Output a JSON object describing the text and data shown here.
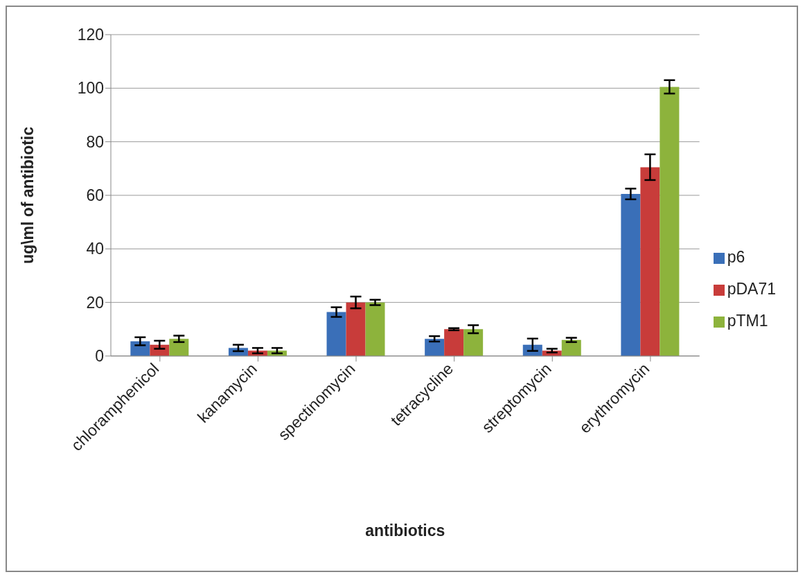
{
  "chart_data": {
    "type": "bar",
    "xlabel": "antibiotics",
    "ylabel": "ug\\ml of antibiotic",
    "categories": [
      "chloramphenicol",
      "kanamycin",
      "spectinomycin",
      "tetracycline",
      "streptomycin",
      "erythromycin"
    ],
    "series": [
      {
        "name": "p6",
        "color": "#3a6fb8",
        "values": [
          5.5,
          3,
          16.4,
          6.4,
          4.2,
          60.5
        ],
        "errors": [
          1.5,
          1.2,
          1.8,
          1,
          2.3,
          2
        ]
      },
      {
        "name": "pDA71",
        "color": "#c83c3a",
        "values": [
          4.2,
          2,
          20,
          10,
          2,
          70.5
        ],
        "errors": [
          1.5,
          1,
          2.2,
          0.4,
          0.7,
          4.8
        ]
      },
      {
        "name": "pTM1",
        "color": "#8db33c",
        "values": [
          6.4,
          2,
          20,
          10,
          6,
          100.5
        ],
        "errors": [
          1.2,
          1,
          1,
          1.5,
          0.8,
          2.5
        ]
      }
    ],
    "ylim": [
      0,
      120
    ],
    "yticks": [
      0,
      20,
      40,
      60,
      80,
      100,
      120
    ],
    "grid": "y",
    "legend": "right"
  }
}
